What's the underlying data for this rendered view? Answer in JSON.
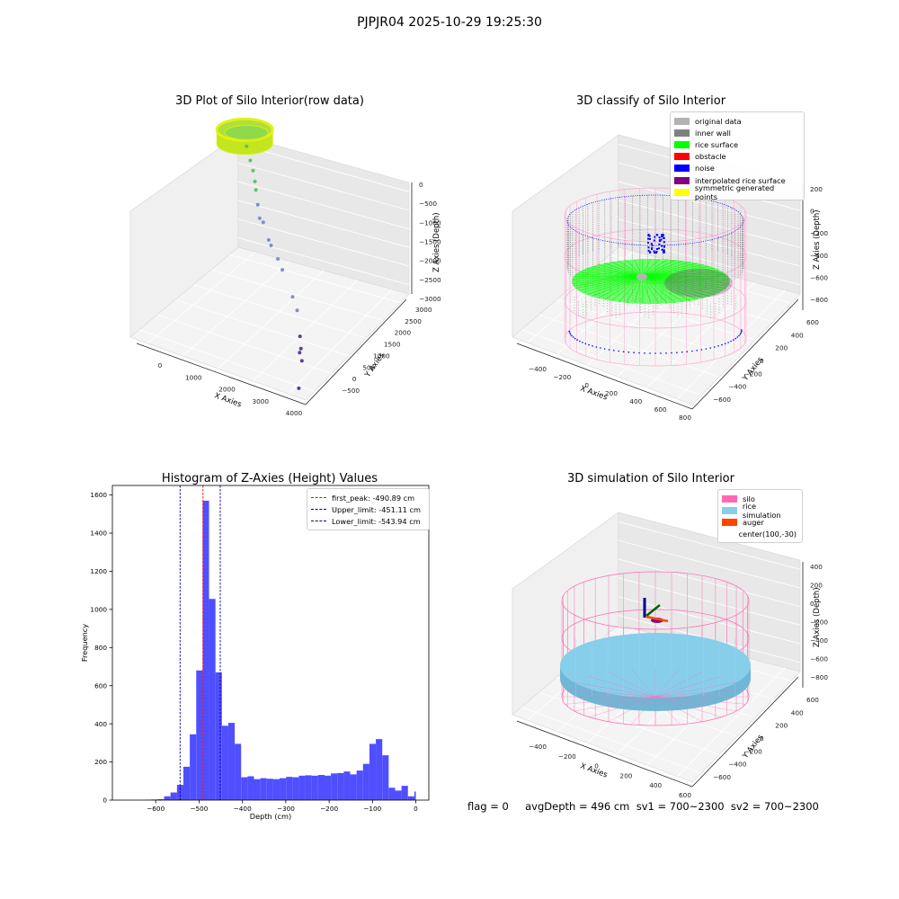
{
  "figure": {
    "title": "PJPJR04 2025-10-29 19:25:30",
    "status_line": "flag = 0     avgDepth = 496 cm  sv1 = 700~2300  sv2 = 700~2300"
  },
  "chart_data": [
    {
      "type": "scatter",
      "projection": "3d",
      "title": "3D Plot of Silo Interior(row data)",
      "xlabel": "X Axies",
      "ylabel": "Y Axies",
      "zlabel": "Z Axies (Depth)",
      "xticks": [
        "0",
        "1000",
        "2000",
        "3000",
        "4000"
      ],
      "yticks": [
        "−500",
        "0",
        "500",
        "1000",
        "1500",
        "2000",
        "2500",
        "3000"
      ],
      "zticks": [
        "0",
        "−500",
        "−1000",
        "−1500",
        "−2000",
        "−2500",
        "−3000"
      ],
      "xlim": [
        -500,
        4200
      ],
      "ylim": [
        -700,
        3100
      ],
      "zlim": [
        -3200,
        0
      ],
      "series": [
        {
          "values": [
            [
              200,
              2500,
              -1050
            ],
            [
              450,
              2300,
              -1150
            ],
            [
              600,
              2200,
              -1250
            ],
            [
              800,
              2000,
              -1300
            ],
            [
              900,
              1900,
              -1380
            ],
            [
              1100,
              1700,
              -1500
            ],
            [
              1300,
              1500,
              -1600
            ],
            [
              1400,
              1500,
              -1650
            ],
            [
              1700,
              1300,
              -1800
            ],
            [
              1800,
              1250,
              -1850
            ],
            [
              2100,
              1100,
              -1950
            ],
            [
              2300,
              1000,
              -2050
            ],
            [
              3100,
              300,
              -2000
            ],
            [
              3300,
              200,
              -2150
            ],
            [
              3600,
              -100,
              -2400
            ],
            [
              3700,
              -200,
              -2550
            ],
            [
              3700,
              -250,
              -2600
            ],
            [
              3800,
              -300,
              -2700
            ],
            [
              3900,
              -550,
              -3050
            ]
          ]
        }
      ],
      "ring": {
        "center": [
          0,
          2700
        ],
        "depth_range": [
          -900,
          -1150
        ],
        "color": "#c7e81f"
      }
    },
    {
      "type": "scatter",
      "projection": "3d",
      "title": "3D classify of Silo Interior",
      "xlabel": "X Axies",
      "ylabel": "Y Axies",
      "zlabel": "Z Axies (Depth)",
      "xticks": [
        "−400",
        "−200",
        "0",
        "200",
        "400",
        "600",
        "800"
      ],
      "yticks": [
        "−600",
        "−400",
        "−200",
        "0",
        "200",
        "400",
        "600"
      ],
      "zticks": [
        "200",
        "0",
        "−200",
        "−400",
        "−600",
        "−800"
      ],
      "legend": {
        "position": "upper-right",
        "items": [
          {
            "label": "original data",
            "color": "#b3b3b3"
          },
          {
            "label": "inner wall",
            "color": "#808080"
          },
          {
            "label": "rice surface",
            "color": "#00ff00"
          },
          {
            "label": "obstacle",
            "color": "#ff0000"
          },
          {
            "label": "noise",
            "color": "#0000ff"
          },
          {
            "label": "interpolated rice surface",
            "color": "#800080"
          },
          {
            "label": "symmetric generated points",
            "color": "#ffff00"
          }
        ]
      }
    },
    {
      "type": "bar",
      "title": "Histogram of Z-Axies (Height) Values",
      "xlabel": "Depth (cm)",
      "ylabel": "Frequency",
      "xlim": [
        -700,
        30
      ],
      "ylim": [
        0,
        1650
      ],
      "xticks": [
        -600,
        -500,
        -400,
        -300,
        -200,
        -100,
        0
      ],
      "yticks": [
        0,
        200,
        400,
        600,
        800,
        1000,
        1200,
        1400,
        1600
      ],
      "bar_color": "#4f4fff",
      "bins": [
        [
          -625.0,
          -610.2,
          2
        ],
        [
          -610.2,
          -595.4,
          3
        ],
        [
          -595.4,
          -580.6,
          5
        ],
        [
          -580.6,
          -565.8,
          20
        ],
        [
          -565.8,
          -551.0,
          40
        ],
        [
          -551.0,
          -536.2,
          80
        ],
        [
          -536.2,
          -521.4,
          175
        ],
        [
          -521.4,
          -506.6,
          345
        ],
        [
          -506.6,
          -491.8,
          680
        ],
        [
          -491.8,
          -477.0,
          1570
        ],
        [
          -477.0,
          -462.2,
          1055
        ],
        [
          -462.2,
          -447.4,
          670
        ],
        [
          -447.4,
          -432.6,
          390
        ],
        [
          -432.6,
          -417.8,
          405
        ],
        [
          -417.8,
          -403.0,
          295
        ],
        [
          -403.0,
          -388.2,
          120
        ],
        [
          -388.2,
          -373.4,
          125
        ],
        [
          -373.4,
          -358.6,
          110
        ],
        [
          -358.6,
          -343.8,
          115
        ],
        [
          -343.8,
          -329.0,
          112
        ],
        [
          -329.0,
          -314.2,
          110
        ],
        [
          -314.2,
          -299.4,
          115
        ],
        [
          -299.4,
          -284.6,
          122
        ],
        [
          -284.6,
          -269.8,
          120
        ],
        [
          -269.8,
          -255.0,
          128
        ],
        [
          -255.0,
          -240.2,
          130
        ],
        [
          -240.2,
          -225.4,
          128
        ],
        [
          -225.4,
          -210.6,
          132
        ],
        [
          -210.6,
          -195.8,
          128
        ],
        [
          -195.8,
          -181.0,
          140
        ],
        [
          -181.0,
          -166.2,
          142
        ],
        [
          -166.2,
          -151.4,
          150
        ],
        [
          -151.4,
          -136.6,
          135
        ],
        [
          -136.6,
          -121.8,
          155
        ],
        [
          -121.8,
          -107.0,
          190
        ],
        [
          -107.0,
          -92.2,
          295
        ],
        [
          -92.2,
          -77.4,
          320
        ],
        [
          -77.4,
          -62.6,
          235
        ],
        [
          -62.6,
          -47.8,
          65
        ],
        [
          -47.8,
          -33.0,
          50
        ],
        [
          -33.0,
          -18.2,
          75
        ],
        [
          -18.2,
          -3.4,
          20
        ],
        [
          -3.4,
          0.0,
          45
        ]
      ],
      "vlines": [
        {
          "x": -490.89,
          "label": "first_peak: -490.89 cm",
          "color": "#ff0000"
        },
        {
          "x": -451.11,
          "label": "Upper_limit: -451.11 cm",
          "color": "#0000a0"
        },
        {
          "x": -543.94,
          "label": "Lower_limit: -543.94 cm",
          "color": "#0000a0"
        }
      ],
      "legend": {
        "position": "upper-right"
      }
    },
    {
      "type": "scatter",
      "projection": "3d",
      "title": "3D simulation of Silo Interior",
      "xlabel": "X Axies",
      "ylabel": "Y Axies",
      "zlabel": "Z Axies (Depth)",
      "xticks": [
        "−400",
        "−200",
        "0",
        "200",
        "400",
        "600"
      ],
      "yticks": [
        "−600",
        "−400",
        "−200",
        "0",
        "200",
        "400",
        "600"
      ],
      "zticks": [
        "400",
        "200",
        "0",
        "−200",
        "−400",
        "−600",
        "−800"
      ],
      "legend": {
        "position": "upper-right",
        "items": [
          {
            "label": "silo",
            "color": "#ff69b4"
          },
          {
            "label": "rice simulation",
            "color": "#87ceeb"
          },
          {
            "label": "auger",
            "color": "#ff4500"
          },
          {
            "label": "center(100,-30)",
            "color": ""
          }
        ]
      }
    }
  ]
}
